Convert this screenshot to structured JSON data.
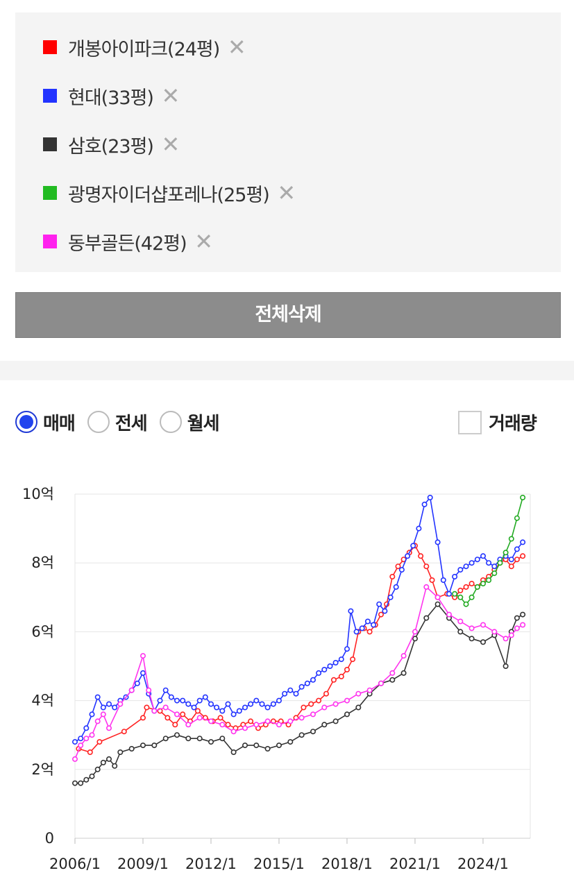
{
  "legend": {
    "items": [
      {
        "label": "개봉아이파크(24평)",
        "color": "#ff0000"
      },
      {
        "label": "현대(33평)",
        "color": "#2233ff"
      },
      {
        "label": "삼호(23평)",
        "color": "#333333"
      },
      {
        "label": "광명자이더샵포레나(25평)",
        "color": "#22bb22"
      },
      {
        "label": "동부골든(42평)",
        "color": "#ff22ee"
      }
    ],
    "remove_symbol": "✕"
  },
  "delete_all_label": "전체삭제",
  "trade_types": [
    {
      "label": "매매",
      "selected": true
    },
    {
      "label": "전세",
      "selected": false
    },
    {
      "label": "월세",
      "selected": false
    }
  ],
  "volume_toggle": {
    "label": "거래량",
    "checked": false
  },
  "chart_data": {
    "type": "line",
    "ylim": [
      0,
      10
    ],
    "y_ticks": [
      0,
      2,
      4,
      6,
      8,
      10
    ],
    "y_tick_labels": [
      "0",
      "2억",
      "4억",
      "6억",
      "8억",
      "10억"
    ],
    "xlim": [
      "2006-01",
      "2026-02"
    ],
    "x_ticks": [
      "2006-01",
      "2009-01",
      "2012-01",
      "2015-01",
      "2018-01",
      "2021-01",
      "2024-01"
    ],
    "x_tick_labels": [
      "2006/1",
      "2009/1",
      "2012/1",
      "2015/1",
      "2018/1",
      "2021/1",
      "2024/1"
    ],
    "grid": true,
    "series": [
      {
        "name": "개봉아이파크(24평)",
        "color": "#ff2222",
        "x": [
          "2006-03",
          "2006-09",
          "2007-02",
          "2008-03",
          "2009-01",
          "2009-03",
          "2009-10",
          "2010-02",
          "2010-06",
          "2010-10",
          "2011-02",
          "2011-06",
          "2011-10",
          "2012-02",
          "2012-06",
          "2012-10",
          "2013-02",
          "2013-06",
          "2013-10",
          "2014-02",
          "2014-06",
          "2014-10",
          "2015-02",
          "2015-06",
          "2015-10",
          "2016-02",
          "2016-06",
          "2016-10",
          "2017-02",
          "2017-06",
          "2017-10",
          "2018-01",
          "2018-04",
          "2018-07",
          "2018-10",
          "2019-01",
          "2019-04",
          "2019-07",
          "2019-10",
          "2020-01",
          "2020-04",
          "2020-07",
          "2020-10",
          "2021-01",
          "2021-04",
          "2021-07",
          "2021-10",
          "2022-01",
          "2022-06",
          "2022-10",
          "2023-01",
          "2023-04",
          "2023-07",
          "2023-10",
          "2024-01",
          "2024-04",
          "2024-07",
          "2024-10",
          "2025-01",
          "2025-04",
          "2025-07",
          "2025-10"
        ],
        "values": [
          2.6,
          2.5,
          2.8,
          3.1,
          3.5,
          3.8,
          3.7,
          3.5,
          3.3,
          3.6,
          3.4,
          3.7,
          3.5,
          3.4,
          3.5,
          3.3,
          3.2,
          3.3,
          3.4,
          3.2,
          3.3,
          3.4,
          3.4,
          3.3,
          3.5,
          3.8,
          3.9,
          4.0,
          4.2,
          4.6,
          4.7,
          4.9,
          5.2,
          6.0,
          6.1,
          6.0,
          6.2,
          6.5,
          6.8,
          7.6,
          7.9,
          8.1,
          8.3,
          8.5,
          8.2,
          7.9,
          7.5,
          7.0,
          7.1,
          7.0,
          7.2,
          7.3,
          7.4,
          7.3,
          7.5,
          7.6,
          7.8,
          8.0,
          8.1,
          7.9,
          8.1,
          8.2
        ]
      },
      {
        "name": "현대(33평)",
        "color": "#2233ff",
        "x": [
          "2006-01",
          "2006-04",
          "2006-07",
          "2006-10",
          "2007-01",
          "2007-04",
          "2007-07",
          "2007-10",
          "2008-01",
          "2008-04",
          "2008-07",
          "2008-10",
          "2009-01",
          "2009-04",
          "2009-07",
          "2009-10",
          "2010-01",
          "2010-04",
          "2010-07",
          "2010-10",
          "2011-01",
          "2011-04",
          "2011-07",
          "2011-10",
          "2012-01",
          "2012-04",
          "2012-07",
          "2012-10",
          "2013-01",
          "2013-04",
          "2013-07",
          "2013-10",
          "2014-01",
          "2014-04",
          "2014-07",
          "2014-10",
          "2015-01",
          "2015-04",
          "2015-07",
          "2015-10",
          "2016-01",
          "2016-04",
          "2016-07",
          "2016-10",
          "2017-01",
          "2017-04",
          "2017-07",
          "2017-10",
          "2018-01",
          "2018-03",
          "2018-06",
          "2018-09",
          "2018-12",
          "2019-03",
          "2019-06",
          "2019-09",
          "2019-12",
          "2020-03",
          "2020-06",
          "2020-09",
          "2020-12",
          "2021-03",
          "2021-06",
          "2021-09",
          "2022-01",
          "2022-04",
          "2022-07",
          "2022-10",
          "2023-01",
          "2023-04",
          "2023-07",
          "2023-10",
          "2024-01",
          "2024-04",
          "2024-07",
          "2024-10",
          "2025-01",
          "2025-04",
          "2025-07",
          "2025-10"
        ],
        "values": [
          2.8,
          2.9,
          3.2,
          3.6,
          4.1,
          3.8,
          3.9,
          3.8,
          4.0,
          4.1,
          4.3,
          4.5,
          4.8,
          4.2,
          3.7,
          4.0,
          4.3,
          4.1,
          4.0,
          4.0,
          3.9,
          3.8,
          4.0,
          4.1,
          3.9,
          3.8,
          3.7,
          3.9,
          3.6,
          3.7,
          3.8,
          3.9,
          4.0,
          3.9,
          3.8,
          3.9,
          4.0,
          4.2,
          4.3,
          4.2,
          4.4,
          4.5,
          4.6,
          4.8,
          4.9,
          5.0,
          5.1,
          5.2,
          5.5,
          6.6,
          6.0,
          6.1,
          6.3,
          6.2,
          6.8,
          6.6,
          7.0,
          7.3,
          7.8,
          8.2,
          8.5,
          9.0,
          9.7,
          9.9,
          8.6,
          7.5,
          7.1,
          7.6,
          7.8,
          7.9,
          8.0,
          8.1,
          8.2,
          8.0,
          7.9,
          8.1,
          8.2,
          8.1,
          8.4,
          8.6
        ]
      },
      {
        "name": "삼호(23평)",
        "color": "#333333",
        "x": [
          "2006-01",
          "2006-04",
          "2006-07",
          "2006-10",
          "2007-01",
          "2007-04",
          "2007-07",
          "2007-10",
          "2008-01",
          "2008-07",
          "2009-01",
          "2009-07",
          "2010-01",
          "2010-07",
          "2011-01",
          "2011-07",
          "2012-01",
          "2012-07",
          "2013-01",
          "2013-07",
          "2014-01",
          "2014-07",
          "2015-01",
          "2015-07",
          "2016-01",
          "2016-07",
          "2017-01",
          "2017-07",
          "2018-01",
          "2018-07",
          "2019-01",
          "2019-07",
          "2020-01",
          "2020-07",
          "2021-01",
          "2021-07",
          "2022-01",
          "2022-07",
          "2023-01",
          "2023-07",
          "2024-01",
          "2024-07",
          "2025-01",
          "2025-04",
          "2025-07",
          "2025-10"
        ],
        "values": [
          1.6,
          1.6,
          1.7,
          1.8,
          2.0,
          2.2,
          2.3,
          2.1,
          2.5,
          2.6,
          2.7,
          2.7,
          2.9,
          3.0,
          2.9,
          2.9,
          2.8,
          2.9,
          2.5,
          2.7,
          2.7,
          2.6,
          2.7,
          2.8,
          3.0,
          3.1,
          3.3,
          3.4,
          3.6,
          3.8,
          4.2,
          4.5,
          4.6,
          4.8,
          5.8,
          6.4,
          6.8,
          6.4,
          6.0,
          5.8,
          5.7,
          5.9,
          5.0,
          6.0,
          6.4,
          6.5
        ]
      },
      {
        "name": "광명자이더샵포레나(25평)",
        "color": "#22aa22",
        "x": [
          "2022-10",
          "2023-01",
          "2023-04",
          "2023-07",
          "2023-10",
          "2024-01",
          "2024-04",
          "2024-07",
          "2024-10",
          "2025-01",
          "2025-04",
          "2025-07",
          "2025-10"
        ],
        "values": [
          7.1,
          7.0,
          6.8,
          7.0,
          7.3,
          7.4,
          7.5,
          7.7,
          8.0,
          8.3,
          8.7,
          9.3,
          9.9
        ]
      },
      {
        "name": "동부골든(42평)",
        "color": "#ff33ee",
        "x": [
          "2006-01",
          "2006-04",
          "2006-07",
          "2006-10",
          "2007-01",
          "2007-04",
          "2007-07",
          "2008-01",
          "2008-07",
          "2009-01",
          "2009-04",
          "2009-07",
          "2010-01",
          "2010-07",
          "2011-01",
          "2011-07",
          "2012-01",
          "2012-07",
          "2013-01",
          "2013-07",
          "2014-01",
          "2014-07",
          "2015-01",
          "2015-07",
          "2016-01",
          "2016-07",
          "2017-01",
          "2017-07",
          "2018-01",
          "2018-07",
          "2019-01",
          "2019-07",
          "2020-01",
          "2020-07",
          "2021-01",
          "2021-07",
          "2022-01",
          "2022-07",
          "2023-01",
          "2023-07",
          "2024-01",
          "2024-07",
          "2025-01",
          "2025-04",
          "2025-07",
          "2025-10"
        ],
        "values": [
          2.3,
          2.7,
          2.9,
          3.0,
          3.4,
          3.6,
          3.2,
          3.9,
          4.3,
          5.3,
          4.3,
          3.7,
          3.8,
          3.6,
          3.3,
          3.5,
          3.4,
          3.3,
          3.1,
          3.2,
          3.3,
          3.4,
          3.3,
          3.4,
          3.5,
          3.6,
          3.8,
          3.9,
          4.0,
          4.2,
          4.3,
          4.5,
          4.8,
          5.3,
          6.0,
          7.3,
          7.0,
          6.5,
          6.3,
          6.1,
          6.2,
          6.0,
          5.8,
          5.9,
          6.1,
          6.2
        ]
      }
    ]
  }
}
